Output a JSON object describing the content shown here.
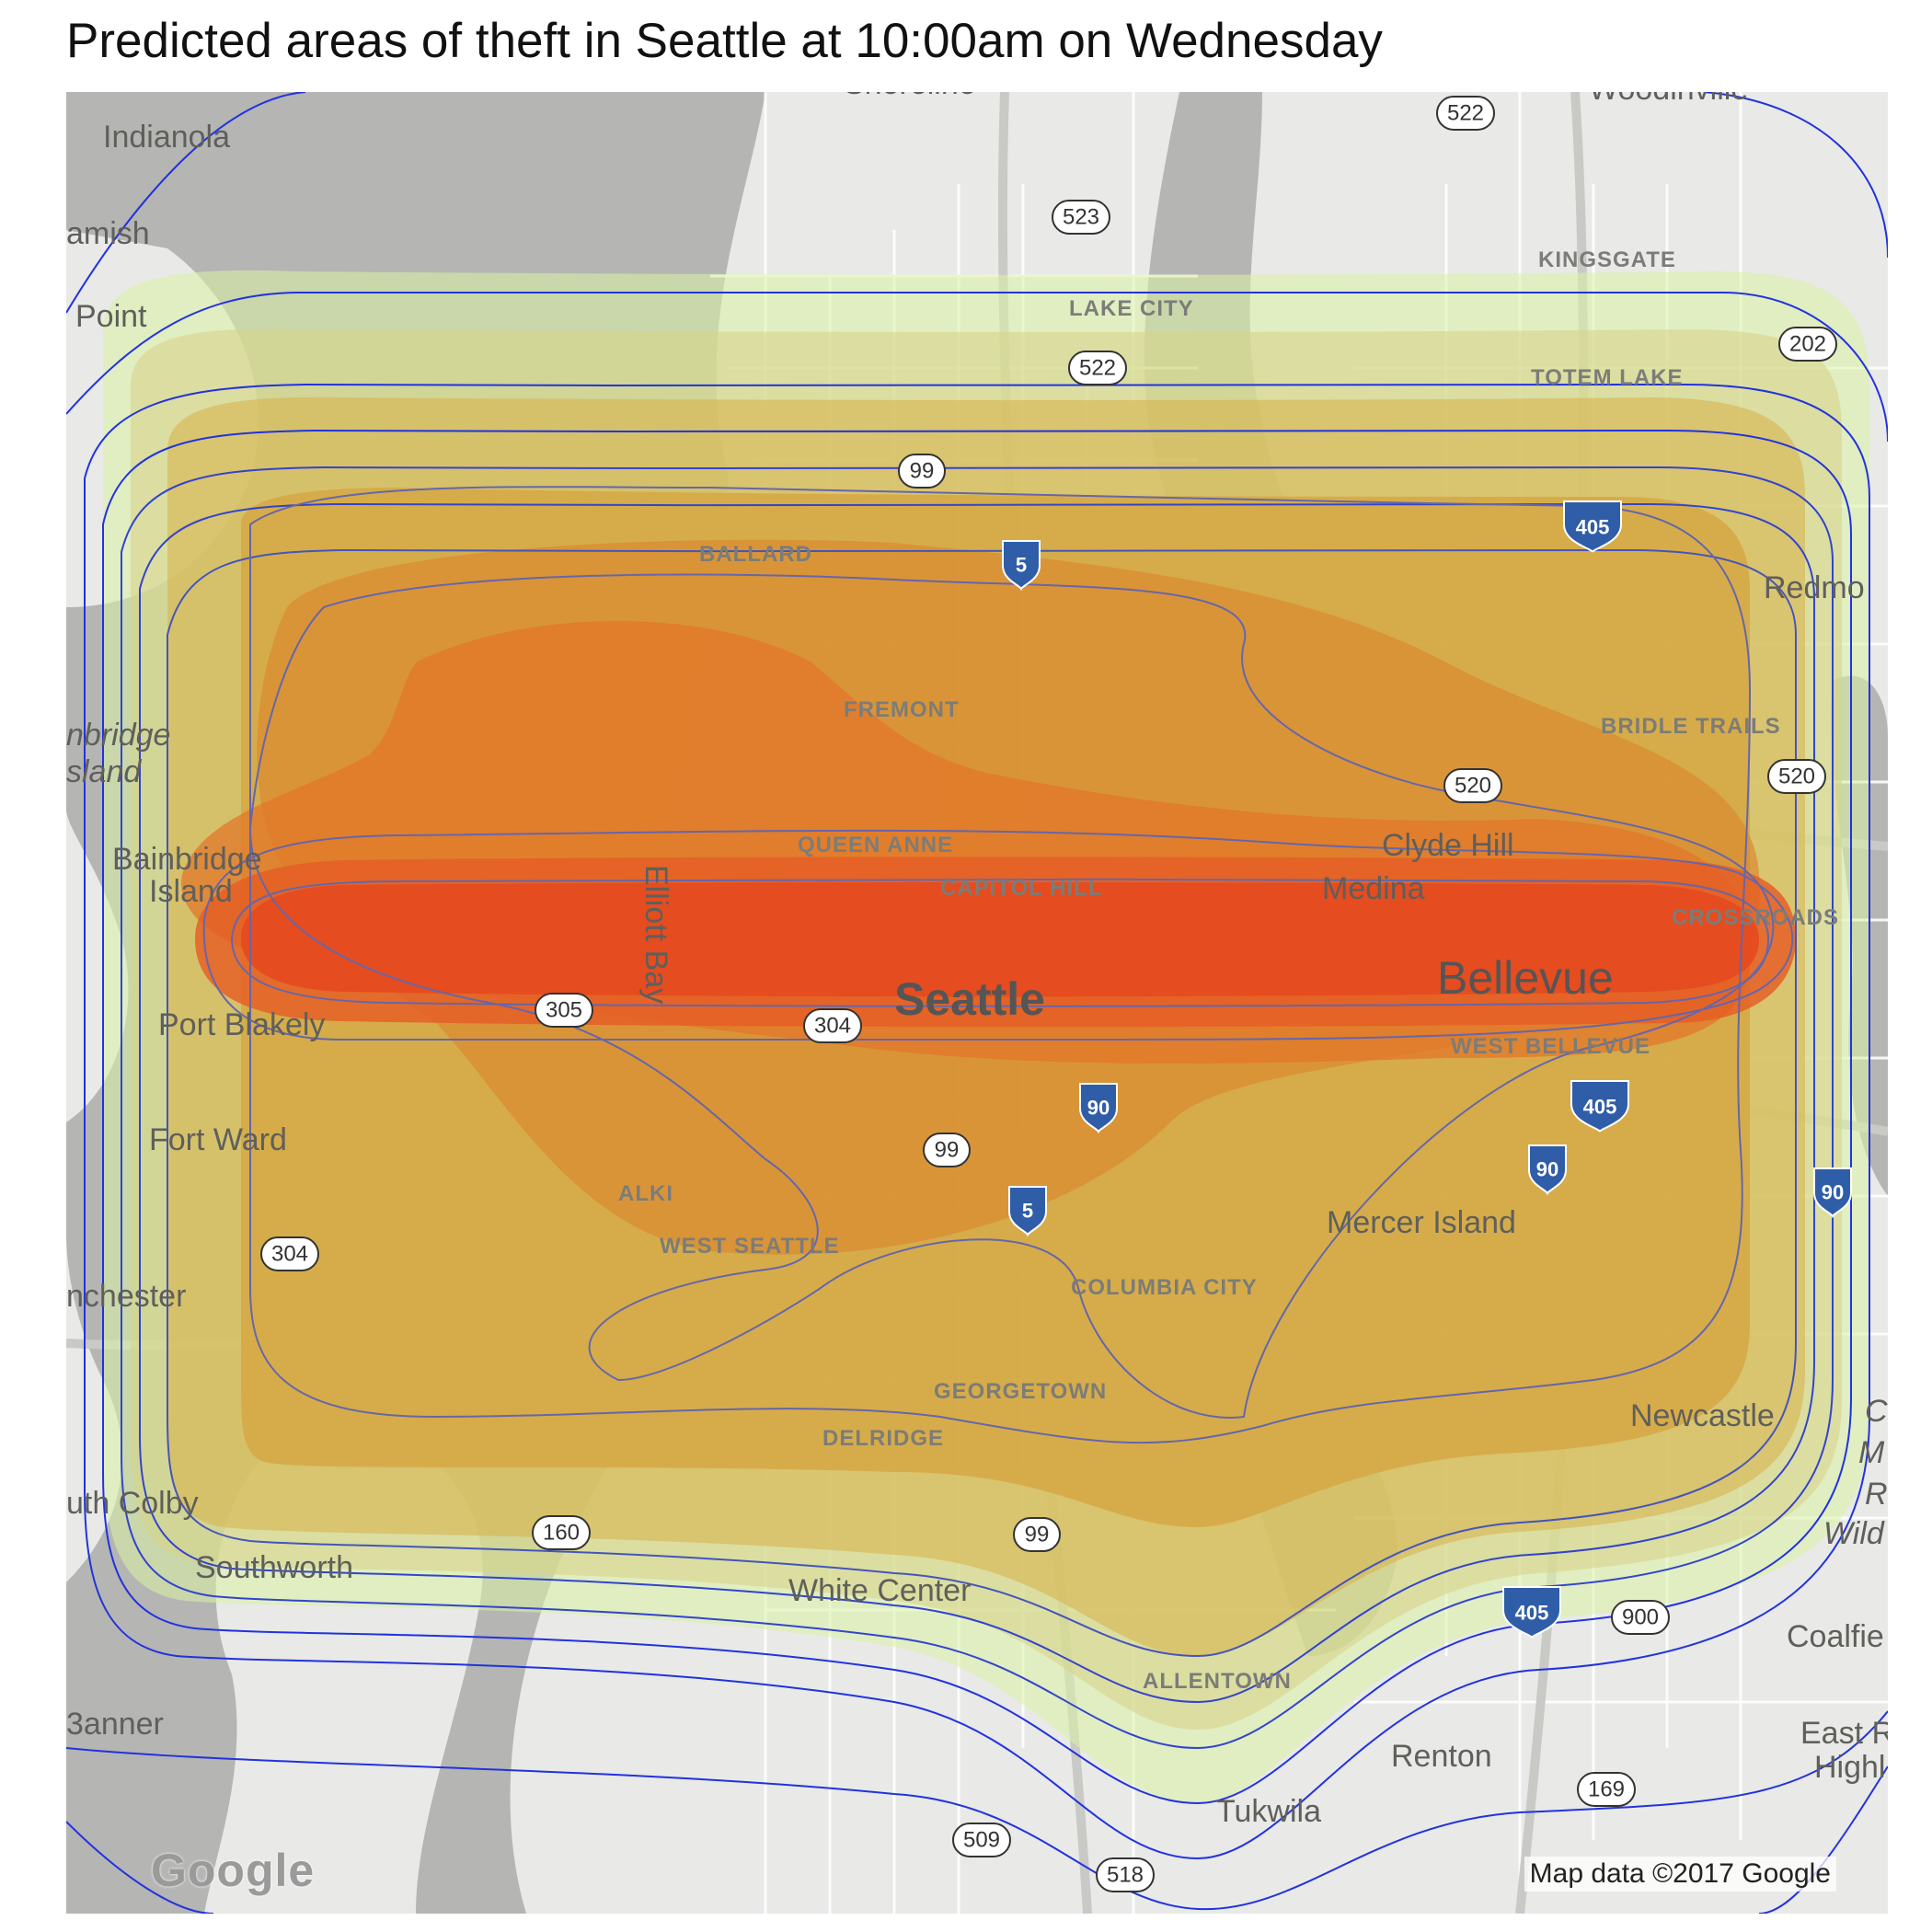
{
  "title": "Predicted areas of theft in Seattle at 10:00am on Wednesday",
  "credit": "Map data ©2017 Google",
  "logo": "Google",
  "colors": {
    "land": "#e9e9e7",
    "water": "#b5b5b3",
    "roads": "#ffffff",
    "highway": "#c9c9c6",
    "contour_outer": "#2233dd",
    "contour_inner": "#6666aa",
    "density_low": "#d4ec9a",
    "density_mid": "#d8a83a",
    "density_high": "#e56a2a",
    "density_peak": "#e5461e"
  },
  "places": {
    "indianola": "Indianola",
    "suquamish": "amish",
    "point": "Point",
    "bainbridge_italic": "nbridge",
    "island_italic": "sland",
    "bainbridge": "Bainbridge",
    "island": "Island",
    "port_blakely": "Port Blakely",
    "fort_ward": "Fort Ward",
    "manchester": "nchester",
    "south_colby": "uth Colby",
    "southworth": "Southworth",
    "banner": "3anner",
    "white_center": "White Center",
    "allentown": "ALLENTOWN",
    "tukwila": "Tukwila",
    "renton": "Renton",
    "newcastle": "Newcastle",
    "mercer_island": "Mercer Island",
    "bellevue": "Bellevue",
    "west_bellevue": "WEST BELLEVUE",
    "medina": "Medina",
    "clyde_hill": "Clyde Hill",
    "crossroads": "CROSSROADS",
    "bridle_trails": "BRIDLE TRAILS",
    "redmond": "Redmo",
    "totem_lake": "TOTEM LAKE",
    "kingsgate": "KINGSGATE",
    "woodinville": "Woodinville",
    "shoreline": "Shoreline",
    "lake_city": "LAKE CITY",
    "ballard": "BALLARD",
    "fremont": "FREMONT",
    "queen_anne": "QUEEN ANNE",
    "capitol_hill": "CAPITOL HILL",
    "seattle": "Seattle",
    "elliott_bay": "Elliott Bay",
    "alki": "ALKI",
    "west_seattle": "WEST SEATTLE",
    "columbia_city": "COLUMBIA CITY",
    "georgetown": "GEORGETOWN",
    "delridge": "DELRIDGE",
    "coalfield": "Coalfie",
    "east_renton_1": "East R",
    "east_renton_2": "Highl",
    "cedar_1": "C",
    "cedar_2": "M",
    "cedar_3": "R",
    "cedar_4": "Wild"
  },
  "shields": {
    "s522a": "522",
    "s523": "523",
    "s522b": "522",
    "s202": "202",
    "s99a": "99",
    "s405a": "405",
    "s5a": "5",
    "s520a": "520",
    "s520b": "520",
    "s305": "305",
    "s304a": "304",
    "s90a": "90",
    "s405b": "405",
    "s99b": "99",
    "s90b": "90",
    "s90c": "90",
    "s5b": "5",
    "s304b": "304",
    "s160": "160",
    "s99c": "99",
    "s405c": "405",
    "s900": "900",
    "s169": "169",
    "s509": "509",
    "s518": "518"
  }
}
